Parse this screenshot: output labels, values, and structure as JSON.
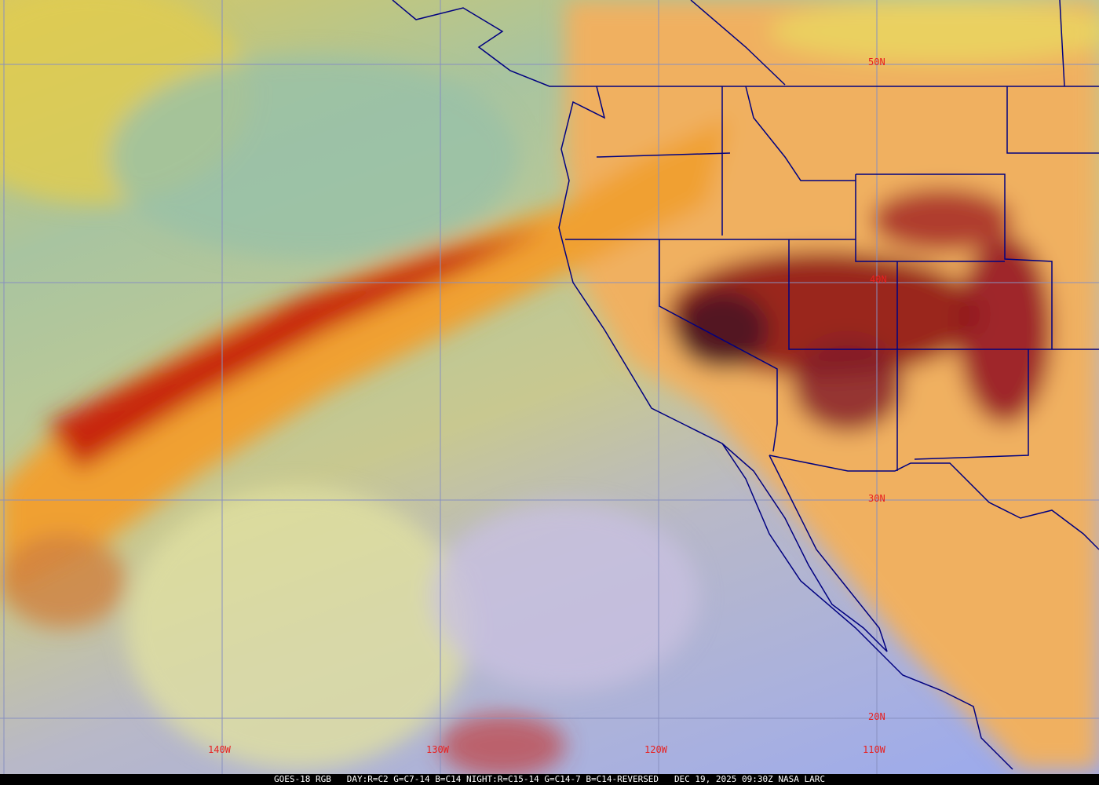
{
  "latitude_labels": [
    "50N",
    "40N",
    "30N",
    "20N"
  ],
  "longitude_labels": [
    "140W",
    "130W",
    "120W",
    "110W"
  ],
  "footer": {
    "satellite": "GOES-18 RGB",
    "recipe": "DAY:R=C2 G=C7-14 B=C14 NIGHT:R=C15-14 G=C14-7 B=C14-REVERSED",
    "datetime": "DEC 19, 2025 09:30Z",
    "source": "NASA LARC"
  },
  "colors": {
    "grid": "#8890c0",
    "borders": "#000080",
    "labels": "#e82020",
    "land": "#f0b060",
    "cloud_band": "#c02010"
  }
}
